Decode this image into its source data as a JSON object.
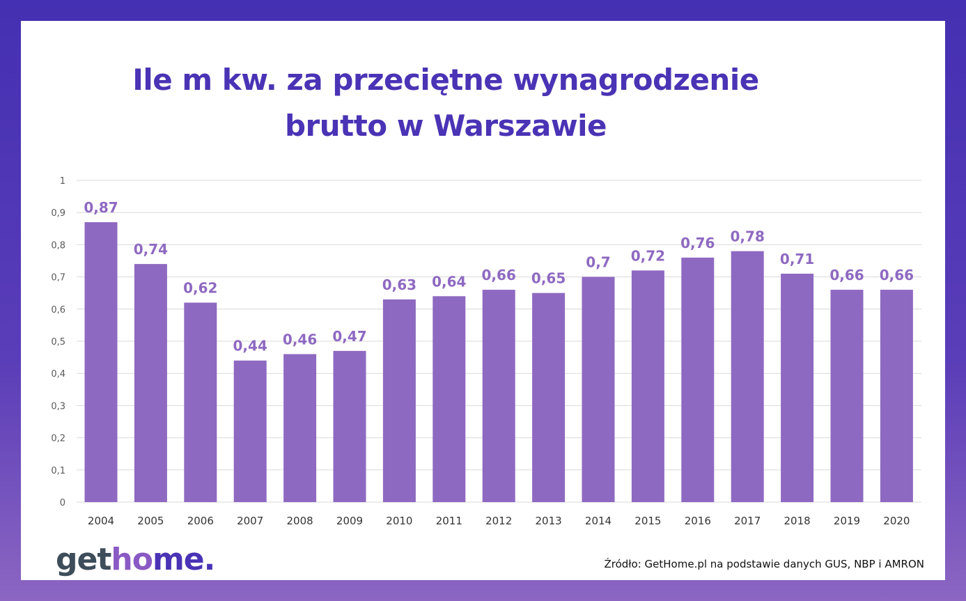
{
  "chart_data": {
    "type": "bar",
    "title": "Ile m kw. za przeciętne wynagrodzenie brutto w Warszawie",
    "title_lines": [
      "Ile m kw. za przeciętne wynagrodzenie",
      "brutto w Warszawie"
    ],
    "categories": [
      "2004",
      "2005",
      "2006",
      "2007",
      "2008",
      "2009",
      "2010",
      "2011",
      "2012",
      "2013",
      "2014",
      "2015",
      "2016",
      "2017",
      "2018",
      "2019",
      "2020"
    ],
    "values": [
      0.87,
      0.74,
      0.62,
      0.44,
      0.46,
      0.47,
      0.63,
      0.64,
      0.66,
      0.65,
      0.7,
      0.72,
      0.76,
      0.78,
      0.71,
      0.66,
      0.66
    ],
    "data_labels": [
      "0,87",
      "0,74",
      "0,62",
      "0,44",
      "0,46",
      "0,47",
      "0,63",
      "0,64",
      "0,66",
      "0,65",
      "0,7",
      "0,72",
      "0,76",
      "0,78",
      "0,71",
      "0,66",
      "0,66"
    ],
    "yticks": [
      "0",
      "0,1",
      "0,2",
      "0,3",
      "0,4",
      "0,5",
      "0,6",
      "0,7",
      "0,8",
      "0,9",
      "1"
    ],
    "ylim": [
      0,
      1
    ],
    "grid": true,
    "bar_color": "#8e69c1",
    "label_color": "#8e69c1"
  },
  "logo": {
    "part1": "get",
    "part2": "ho",
    "part3": "me."
  },
  "source": "Źródło: GetHome.pl na podstawie danych GUS, NBP i AMRON"
}
